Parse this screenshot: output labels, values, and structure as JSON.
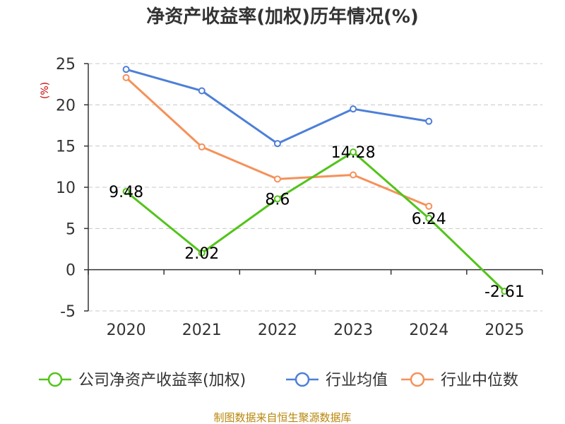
{
  "chart_data": {
    "type": "line",
    "title": "净资产收益率(加权)历年情况(%)",
    "ylabel": "(%)",
    "xlabel": "",
    "categories": [
      "2020",
      "2021",
      "2022",
      "2023",
      "2024",
      "2025"
    ],
    "ylim": [
      -5,
      25
    ],
    "yticks": [
      "25",
      "20",
      "15",
      "10",
      "5",
      "0",
      "-5"
    ],
    "ytick_values": [
      25,
      20,
      15,
      10,
      5,
      0,
      -5
    ],
    "grid": true,
    "legend_position": "bottom",
    "series": [
      {
        "name": "公司净资产收益率(加权)",
        "color": "#52c41a",
        "values": [
          9.48,
          2.02,
          8.6,
          14.28,
          6.24,
          -2.61
        ],
        "labels": [
          "9.48",
          "2.02",
          "8.6",
          "14.28",
          "6.24",
          "-2.61"
        ]
      },
      {
        "name": "行业均值",
        "color": "#4e7fd8",
        "values": [
          24.3,
          21.7,
          15.3,
          19.5,
          18.0,
          null
        ]
      },
      {
        "name": "行业中位数",
        "color": "#f5915a",
        "values": [
          23.3,
          14.9,
          11.0,
          11.5,
          7.7,
          null
        ]
      }
    ]
  },
  "footer": {
    "source": "制图数据来自恒生聚源数据库"
  }
}
